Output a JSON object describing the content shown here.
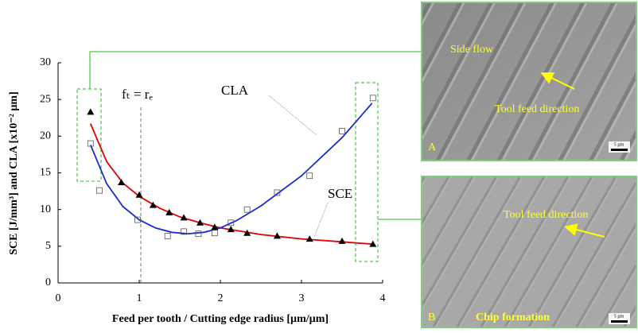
{
  "chart_data": {
    "type": "scatter",
    "x_label": "Feed per tooth / Cutting edge radius [µm/µm]",
    "y_label": "SCE [J/mm³] and CLA [x10⁻² µm]",
    "xlim": [
      0,
      4
    ],
    "xticks": [
      0,
      1,
      2,
      3,
      4
    ],
    "ylim": [
      0,
      30
    ],
    "yticks": [
      0,
      5,
      10,
      15,
      20,
      25,
      30
    ],
    "series": [
      {
        "name": "SCE",
        "color": "#000000",
        "marker": "triangle",
        "x": [
          0.4,
          0.78,
          1.0,
          1.17,
          1.37,
          1.55,
          1.75,
          1.93,
          2.13,
          2.33,
          2.7,
          3.1,
          3.5,
          3.88
        ],
        "values": [
          23.3,
          13.7,
          12.0,
          10.6,
          9.6,
          8.9,
          8.2,
          7.6,
          7.3,
          6.8,
          6.4,
          6.0,
          5.7,
          5.3
        ]
      },
      {
        "name": "CLA",
        "color": "#555555",
        "marker": "square",
        "x": [
          0.4,
          0.51,
          0.98,
          1.35,
          1.55,
          1.73,
          1.93,
          2.13,
          2.33,
          2.7,
          3.1,
          3.5,
          3.88
        ],
        "values": [
          19.0,
          12.6,
          8.6,
          6.4,
          7.0,
          6.7,
          6.8,
          8.2,
          10.0,
          12.3,
          14.6,
          20.7,
          25.2
        ]
      }
    ],
    "fit_curves": [
      {
        "color": "#e00000",
        "x": [
          0.4,
          0.6,
          0.8,
          1,
          1.25,
          1.5,
          1.75,
          2,
          2.5,
          3,
          3.5,
          3.87
        ],
        "values": [
          21.7,
          16.5,
          13.6,
          11.8,
          10.2,
          9.0,
          8.2,
          7.5,
          6.6,
          6.0,
          5.6,
          5.3
        ]
      },
      {
        "color": "#1a2bd0",
        "x": [
          0.4,
          0.6,
          0.8,
          1,
          1.2,
          1.4,
          1.6,
          1.8,
          2,
          2.2,
          2.5,
          3,
          3.5,
          3.87
        ],
        "values": [
          18.8,
          13.5,
          10.4,
          8.6,
          7.5,
          6.9,
          6.7,
          6.9,
          7.5,
          8.5,
          10.5,
          14.6,
          19.8,
          24.5
        ]
      }
    ],
    "annotation": {
      "text": "fₜ = rₑ",
      "x": 1.02
    }
  },
  "images": [
    {
      "letter": "A",
      "labels": [
        "Side flow",
        "Tool feed direction"
      ],
      "scale": "5 µm"
    },
    {
      "letter": "B",
      "labels": [
        "Tool feed direction",
        "Chip formation"
      ],
      "scale": "5 µm"
    }
  ]
}
